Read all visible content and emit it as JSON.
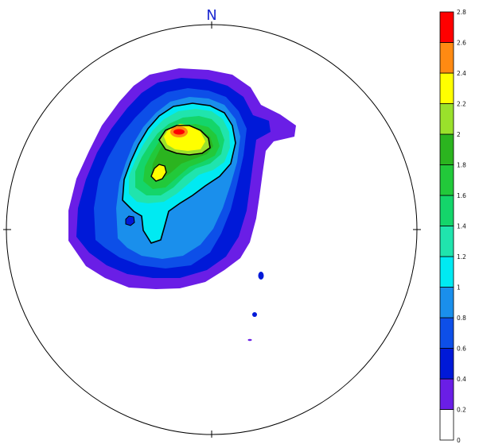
{
  "north_label": "N",
  "colorbar": {
    "ticks": [
      "0",
      "0.2",
      "0.4",
      "0.6",
      "0.8",
      "1",
      "1.2",
      "1.4",
      "1.6",
      "1.8",
      "2",
      "2.2",
      "2.4",
      "2.6",
      "2.8"
    ],
    "bins": [
      {
        "from": 0.0,
        "to": 0.2,
        "color": "#ffffff"
      },
      {
        "from": 0.2,
        "to": 0.4,
        "color": "#6a1ee6"
      },
      {
        "from": 0.4,
        "to": 0.6,
        "color": "#0019d8"
      },
      {
        "from": 0.6,
        "to": 0.8,
        "color": "#0d4fe8"
      },
      {
        "from": 0.8,
        "to": 1.0,
        "color": "#1a8fec"
      },
      {
        "from": 1.0,
        "to": 1.2,
        "color": "#00eaf2"
      },
      {
        "from": 1.2,
        "to": 1.4,
        "color": "#20e4ad"
      },
      {
        "from": 1.4,
        "to": 1.6,
        "color": "#14d56a"
      },
      {
        "from": 1.6,
        "to": 1.8,
        "color": "#22c93a"
      },
      {
        "from": 1.8,
        "to": 2.0,
        "color": "#2bb41f"
      },
      {
        "from": 2.0,
        "to": 2.2,
        "color": "#9ae12b"
      },
      {
        "from": 2.2,
        "to": 2.4,
        "color": "#ffff00"
      },
      {
        "from": 2.4,
        "to": 2.6,
        "color": "#ff8a12"
      },
      {
        "from": 2.6,
        "to": 2.8,
        "color": "#ff0000"
      }
    ]
  }
}
